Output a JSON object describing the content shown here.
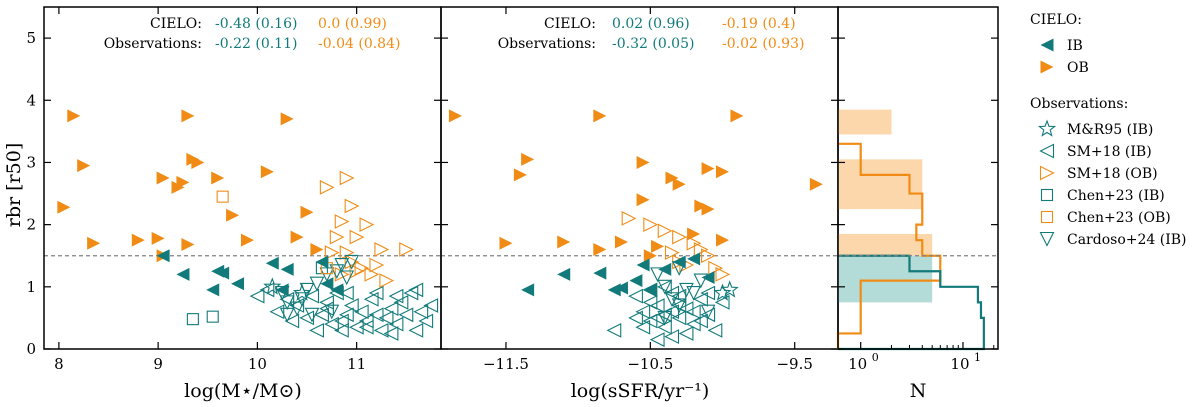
{
  "colors": {
    "ib": "#127a7a",
    "ob": "#f08c16",
    "ib_fill": "#b3dbd8",
    "ob_fill": "#fdd7ac",
    "refline": "#808080"
  },
  "refline_y": 1.5,
  "panels": [
    {
      "id": "mass",
      "xlabel": "log(M⋆/M⊙)",
      "ylabel": "rbr [r50]",
      "xlim": [
        7.85,
        11.85
      ],
      "ylim": [
        0,
        5.5
      ],
      "xticks": [
        {
          "v": 8,
          "t": "8"
        },
        {
          "v": 9,
          "t": "9"
        },
        {
          "v": 10,
          "t": "10"
        },
        {
          "v": 11,
          "t": "11"
        }
      ],
      "yticks": [
        {
          "v": 0,
          "t": "0"
        },
        {
          "v": 1,
          "t": "1"
        },
        {
          "v": 2,
          "t": "2"
        },
        {
          "v": 3,
          "t": "3"
        },
        {
          "v": 4,
          "t": "4"
        },
        {
          "v": 5,
          "t": "5"
        }
      ],
      "annotations": {
        "row1_label": "CIELO:",
        "row1_ib": "-0.48 (0.16)",
        "row1_ob": "0.0 (0.99)",
        "row2_label": "Observations:",
        "row2_ib": "-0.22 (0.11)",
        "row2_ob": "-0.04 (0.84)"
      },
      "series": {
        "cielo_ob": [
          [
            8.15,
            3.75
          ],
          [
            8.25,
            2.95
          ],
          [
            8.05,
            2.28
          ],
          [
            8.35,
            1.7
          ],
          [
            8.8,
            1.75
          ],
          [
            9.05,
            2.75
          ],
          [
            9.2,
            2.6
          ],
          [
            9.25,
            2.68
          ],
          [
            9.0,
            1.78
          ],
          [
            9.3,
            1.68
          ],
          [
            9.35,
            3.05
          ],
          [
            9.4,
            3.0
          ],
          [
            9.6,
            2.75
          ],
          [
            9.75,
            2.15
          ],
          [
            9.9,
            1.75
          ],
          [
            10.1,
            2.85
          ],
          [
            10.4,
            1.8
          ],
          [
            10.6,
            1.6
          ],
          [
            9.05,
            1.5
          ],
          [
            9.3,
            3.75
          ],
          [
            10.3,
            3.7
          ],
          [
            10.5,
            2.2
          ]
        ],
        "cielo_ib": [
          [
            9.05,
            1.5
          ],
          [
            9.25,
            1.2
          ],
          [
            9.6,
            1.25
          ],
          [
            9.65,
            1.22
          ],
          [
            9.55,
            0.95
          ],
          [
            10.15,
            1.38
          ],
          [
            10.3,
            1.28
          ],
          [
            10.7,
            1.05
          ],
          [
            10.8,
            0.95
          ],
          [
            10.25,
            0.95
          ],
          [
            10.65,
            1.4
          ],
          [
            9.8,
            1.05
          ]
        ],
        "obs_mr": [
          [
            10.15,
            1.0
          ],
          [
            10.45,
            0.9
          ]
        ],
        "obs_sm_ib": [
          [
            10.0,
            0.85
          ],
          [
            10.1,
            0.95
          ],
          [
            10.2,
            0.6
          ],
          [
            10.3,
            0.8
          ],
          [
            10.35,
            0.45
          ],
          [
            10.4,
            0.7
          ],
          [
            10.5,
            0.5
          ],
          [
            10.55,
            0.85
          ],
          [
            10.6,
            0.3
          ],
          [
            10.65,
            0.55
          ],
          [
            10.7,
            0.65
          ],
          [
            10.75,
            0.4
          ],
          [
            10.8,
            0.9
          ],
          [
            10.85,
            0.45
          ],
          [
            10.9,
            0.55
          ],
          [
            10.95,
            0.7
          ],
          [
            11.0,
            0.35
          ],
          [
            11.05,
            0.6
          ],
          [
            11.1,
            0.45
          ],
          [
            11.15,
            0.8
          ],
          [
            11.2,
            0.55
          ],
          [
            11.25,
            0.3
          ],
          [
            11.3,
            0.5
          ],
          [
            11.35,
            0.65
          ],
          [
            11.4,
            0.4
          ],
          [
            11.45,
            0.75
          ],
          [
            11.5,
            0.55
          ],
          [
            11.55,
            0.9
          ],
          [
            11.6,
            0.3
          ],
          [
            11.65,
            0.6
          ],
          [
            11.7,
            0.45
          ],
          [
            11.75,
            0.7
          ],
          [
            11.6,
            0.95
          ],
          [
            10.9,
            0.9
          ],
          [
            11.1,
            0.35
          ],
          [
            10.7,
            0.75
          ],
          [
            11.35,
            0.25
          ],
          [
            11.4,
            0.85
          ],
          [
            10.85,
            0.3
          ],
          [
            11.2,
            0.9
          ]
        ],
        "obs_sm_ob": [
          [
            10.7,
            2.6
          ],
          [
            10.95,
            2.3
          ],
          [
            10.85,
            2.05
          ],
          [
            11.1,
            2.0
          ],
          [
            11.0,
            1.8
          ],
          [
            11.25,
            1.6
          ],
          [
            10.9,
            1.55
          ],
          [
            10.95,
            1.4
          ],
          [
            11.2,
            1.35
          ],
          [
            11.3,
            1.1
          ],
          [
            11.05,
            1.3
          ],
          [
            10.8,
            1.8
          ],
          [
            10.75,
            1.55
          ],
          [
            10.9,
            2.75
          ],
          [
            11.5,
            1.6
          ],
          [
            11.0,
            1.25
          ],
          [
            11.15,
            1.2
          ],
          [
            10.85,
            1.2
          ]
        ],
        "obs_chen_ib": [
          [
            9.35,
            0.48
          ],
          [
            9.55,
            0.52
          ],
          [
            10.65,
            1.3
          ]
        ],
        "obs_chen_ob": [
          [
            9.65,
            2.45
          ],
          [
            10.7,
            1.3
          ]
        ],
        "obs_cardoso": [
          [
            10.25,
            0.9
          ],
          [
            10.3,
            0.75
          ],
          [
            10.4,
            0.65
          ],
          [
            10.45,
            0.8
          ],
          [
            10.5,
            0.95
          ],
          [
            10.55,
            0.55
          ],
          [
            10.7,
            1.2
          ],
          [
            10.8,
            1.25
          ],
          [
            10.85,
            1.35
          ],
          [
            10.9,
            1.15
          ],
          [
            10.3,
            0.55
          ],
          [
            10.6,
            1.05
          ],
          [
            10.75,
            0.6
          ],
          [
            10.95,
            1.4
          ]
        ]
      }
    },
    {
      "id": "ssfr",
      "xlabel": "log(sSFR/yr⁻¹)",
      "ylabel": "",
      "xlim": [
        -11.95,
        -9.2
      ],
      "ylim": [
        0,
        5.5
      ],
      "xticks": [
        {
          "v": -11.5,
          "t": "−11.5"
        },
        {
          "v": -10.5,
          "t": "−10.5"
        },
        {
          "v": -9.5,
          "t": "−9.5"
        }
      ],
      "yticks": [],
      "annotations": {
        "row1_label": "CIELO:",
        "row1_ib": "0.02 (0.96)",
        "row1_ob": "-0.19 (0.4)",
        "row2_label": "Observations:",
        "row2_ib": "-0.32 (0.05)",
        "row2_ob": "-0.02 (0.93)"
      },
      "series": {
        "cielo_ob": [
          [
            -11.85,
            3.75
          ],
          [
            -11.35,
            3.05
          ],
          [
            -11.4,
            2.8
          ],
          [
            -10.85,
            3.75
          ],
          [
            -10.55,
            3.0
          ],
          [
            -10.55,
            2.4
          ],
          [
            -10.35,
            2.75
          ],
          [
            -10.3,
            2.65
          ],
          [
            -10.15,
            2.3
          ],
          [
            -10.1,
            2.25
          ],
          [
            -10.1,
            2.9
          ],
          [
            -10.0,
            1.75
          ],
          [
            -9.9,
            3.75
          ],
          [
            -9.35,
            2.65
          ],
          [
            -11.5,
            1.7
          ],
          [
            -11.1,
            1.72
          ],
          [
            -10.7,
            1.72
          ],
          [
            -10.85,
            1.6
          ],
          [
            -10.45,
            1.65
          ],
          [
            -10.2,
            1.85
          ],
          [
            -10.0,
            2.85
          ],
          [
            -10.5,
            1.5
          ]
        ],
        "cielo_ib": [
          [
            -11.1,
            1.2
          ],
          [
            -10.85,
            1.22
          ],
          [
            -10.75,
            0.95
          ],
          [
            -10.7,
            0.98
          ],
          [
            -10.55,
            1.35
          ],
          [
            -10.4,
            1.28
          ],
          [
            -10.3,
            1.4
          ],
          [
            -10.2,
            1.45
          ],
          [
            -10.1,
            1.15
          ],
          [
            -10.5,
            0.95
          ],
          [
            -11.35,
            0.95
          ],
          [
            -10.6,
            1.1
          ]
        ],
        "obs_mr": [
          [
            -10.0,
            0.9
          ],
          [
            -9.95,
            0.95
          ]
        ],
        "obs_sm_ib": [
          [
            -10.75,
            0.3
          ],
          [
            -10.6,
            0.85
          ],
          [
            -10.55,
            0.6
          ],
          [
            -10.5,
            0.45
          ],
          [
            -10.45,
            0.7
          ],
          [
            -10.4,
            0.35
          ],
          [
            -10.35,
            0.9
          ],
          [
            -10.3,
            0.5
          ],
          [
            -10.25,
            0.65
          ],
          [
            -10.2,
            0.4
          ],
          [
            -10.15,
            0.8
          ],
          [
            -10.1,
            0.55
          ],
          [
            -10.05,
            0.3
          ],
          [
            -10.0,
            0.75
          ],
          [
            -10.45,
            0.15
          ],
          [
            -10.5,
            0.95
          ],
          [
            -10.4,
            1.0
          ],
          [
            -10.35,
            0.2
          ],
          [
            -10.3,
            0.85
          ],
          [
            -10.2,
            0.6
          ],
          [
            -10.6,
            0.5
          ],
          [
            -10.55,
            0.35
          ],
          [
            -10.15,
            0.45
          ],
          [
            -10.25,
            0.25
          ],
          [
            -10.4,
            0.55
          ],
          [
            -10.3,
            0.7
          ],
          [
            -10.5,
            0.75
          ],
          [
            -10.1,
            0.9
          ],
          [
            -10.45,
            0.5
          ],
          [
            -10.35,
            0.6
          ]
        ],
        "obs_sm_ob": [
          [
            -10.65,
            2.1
          ],
          [
            -10.5,
            2.0
          ],
          [
            -10.3,
            1.8
          ],
          [
            -10.2,
            1.7
          ],
          [
            -10.1,
            1.5
          ],
          [
            -10.05,
            1.3
          ],
          [
            -10.0,
            1.2
          ],
          [
            -10.35,
            1.55
          ],
          [
            -10.25,
            1.35
          ],
          [
            -10.15,
            1.6
          ],
          [
            -10.4,
            1.9
          ],
          [
            -10.3,
            1.4
          ]
        ],
        "obs_chen_ib": [],
        "obs_chen_ob": [],
        "obs_cardoso": [
          [
            -10.4,
            1.0
          ],
          [
            -10.35,
            0.8
          ],
          [
            -10.3,
            0.7
          ],
          [
            -10.2,
            0.9
          ],
          [
            -10.15,
            1.1
          ],
          [
            -10.1,
            0.6
          ],
          [
            -10.4,
            0.5
          ],
          [
            -10.45,
            1.2
          ],
          [
            -10.3,
            1.3
          ],
          [
            -10.25,
            0.95
          ]
        ]
      }
    }
  ],
  "histogram": {
    "xlabel": "N",
    "xlog": true,
    "xlim": [
      0.6,
      22
    ],
    "xticks": [
      {
        "v": 1,
        "t": "10"
      },
      {
        "v": 10,
        "t": "10"
      }
    ],
    "xtick_exps": [
      "0",
      "1"
    ],
    "cielo_ib": [
      {
        "y0": 0.75,
        "y1": 1.5,
        "n": 5
      }
    ],
    "cielo_ob": [
      {
        "y0": 1.5,
        "y1": 1.85,
        "n": 5
      },
      {
        "y0": 2.25,
        "y1": 3.05,
        "n": 4
      },
      {
        "y0": 3.45,
        "y1": 3.85,
        "n": 2
      }
    ],
    "obs_ib_step": [
      {
        "y0": 0,
        "y1": 0.25,
        "n": 16
      },
      {
        "y0": 0.25,
        "y1": 0.5,
        "n": 16
      },
      {
        "y0": 0.5,
        "y1": 0.75,
        "n": 15
      },
      {
        "y0": 0.75,
        "y1": 1.0,
        "n": 14
      },
      {
        "y0": 1.0,
        "y1": 1.25,
        "n": 6
      },
      {
        "y0": 1.25,
        "y1": 1.5,
        "n": 3
      }
    ],
    "obs_ob_step": [
      {
        "y0": 0,
        "y1": 0.25,
        "n": 0.6
      },
      {
        "y0": 0.25,
        "y1": 1.1,
        "n": 1
      },
      {
        "y0": 1.1,
        "y1": 1.5,
        "n": 6
      },
      {
        "y0": 1.5,
        "y1": 1.75,
        "n": 4
      },
      {
        "y0": 1.75,
        "y1": 2.0,
        "n": 3.5
      },
      {
        "y0": 2.0,
        "y1": 2.5,
        "n": 4
      },
      {
        "y0": 2.5,
        "y1": 2.8,
        "n": 3
      },
      {
        "y0": 2.8,
        "y1": 3.3,
        "n": 1
      }
    ]
  },
  "legend": {
    "cielo_title": "CIELO:",
    "cielo_ib": "IB",
    "cielo_ob": "OB",
    "obs_title": "Observations:",
    "obs_mr": "M&R95 (IB)",
    "obs_sm_ib": "SM+18 (IB)",
    "obs_sm_ob": "SM+18 (OB)",
    "obs_chen_ib": "Chen+23 (IB)",
    "obs_chen_ob": "Chen+23 (OB)",
    "obs_cardoso": "Cardoso+24 (IB)"
  }
}
